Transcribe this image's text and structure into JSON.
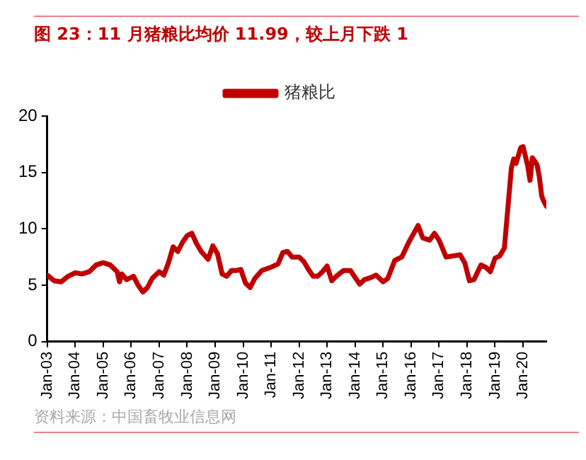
{
  "chart_data": {
    "type": "line",
    "title": "图 23：11 月猪粮比均价 11.99，较上月下跌 1",
    "annotations": [
      "资料来源：中国畜牧业信息网"
    ],
    "x": [
      "2003-01",
      "2003-04",
      "2003-07",
      "2003-10",
      "2004-01",
      "2004-04",
      "2004-07",
      "2004-10",
      "2005-01",
      "2005-04",
      "2005-07",
      "2005-08",
      "2005-09",
      "2005-11",
      "2006-02",
      "2006-04",
      "2006-06",
      "2006-08",
      "2006-10",
      "2007-01",
      "2007-03",
      "2007-05",
      "2007-07",
      "2007-09",
      "2007-11",
      "2008-01",
      "2008-03",
      "2008-05",
      "2008-07",
      "2008-10",
      "2008-12",
      "2009-02",
      "2009-04",
      "2009-06",
      "2009-08",
      "2009-10",
      "2009-12",
      "2010-02",
      "2010-04",
      "2010-06",
      "2010-09",
      "2011-01",
      "2011-04",
      "2011-06",
      "2011-08",
      "2011-10",
      "2012-01",
      "2012-03",
      "2012-05",
      "2012-07",
      "2012-09",
      "2012-11",
      "2013-01",
      "2013-03",
      "2013-05",
      "2013-08",
      "2013-11",
      "2014-01",
      "2014-03",
      "2014-05",
      "2014-08",
      "2014-10",
      "2015-01",
      "2015-03",
      "2015-06",
      "2015-09",
      "2015-12",
      "2016-04",
      "2016-06",
      "2016-09",
      "2016-11",
      "2017-01",
      "2017-04",
      "2017-07",
      "2017-10",
      "2017-12",
      "2018-02",
      "2018-04",
      "2018-07",
      "2018-09",
      "2018-11",
      "2019-01",
      "2019-03",
      "2019-05",
      "2019-08",
      "2019-09",
      "2019-10",
      "2019-12",
      "2020-01",
      "2020-03",
      "2020-04",
      "2020-05",
      "2020-07",
      "2020-08",
      "2020-09",
      "2020-10",
      "2020-11"
    ],
    "series": [
      {
        "name": "猪粮比",
        "color": "#c00000",
        "values": [
          5.9,
          5.4,
          5.3,
          5.8,
          6.1,
          6.0,
          6.2,
          6.8,
          7.0,
          6.8,
          6.2,
          5.3,
          6.0,
          5.5,
          5.8,
          5.0,
          4.4,
          4.8,
          5.6,
          6.2,
          5.9,
          7.0,
          8.4,
          8.0,
          8.8,
          9.4,
          9.6,
          8.7,
          8.0,
          7.3,
          8.5,
          7.8,
          6.0,
          5.8,
          6.3,
          6.3,
          6.4,
          5.2,
          4.8,
          5.6,
          6.3,
          6.6,
          6.9,
          7.9,
          8.0,
          7.5,
          7.5,
          7.1,
          6.4,
          5.8,
          5.8,
          6.2,
          6.7,
          5.4,
          5.8,
          6.3,
          6.3,
          5.7,
          5.1,
          5.5,
          5.7,
          5.9,
          5.3,
          5.6,
          7.2,
          7.5,
          8.8,
          10.3,
          9.2,
          9.0,
          9.6,
          9.0,
          7.5,
          7.6,
          7.7,
          7.0,
          5.4,
          5.5,
          6.8,
          6.6,
          6.2,
          7.4,
          7.6,
          8.3,
          15.4,
          16.2,
          15.8,
          17.2,
          17.3,
          15.6,
          14.3,
          16.3,
          15.7,
          14.6,
          12.9,
          12.4,
          12.0
        ]
      }
    ],
    "xlim": [
      "2003-01",
      "2020-11"
    ],
    "xticks": [
      {
        "value": "2003-01",
        "label": "Jan-03"
      },
      {
        "value": "2004-01",
        "label": "Jan-04"
      },
      {
        "value": "2005-01",
        "label": "Jan-05"
      },
      {
        "value": "2006-01",
        "label": "Jan-06"
      },
      {
        "value": "2007-01",
        "label": "Jan-07"
      },
      {
        "value": "2008-01",
        "label": "Jan-08"
      },
      {
        "value": "2009-01",
        "label": "Jan-09"
      },
      {
        "value": "2010-01",
        "label": "Jan-10"
      },
      {
        "value": "2011-01",
        "label": "Jan-11"
      },
      {
        "value": "2012-01",
        "label": "Jan-12"
      },
      {
        "value": "2013-01",
        "label": "Jan-13"
      },
      {
        "value": "2014-01",
        "label": "Jan-14"
      },
      {
        "value": "2015-01",
        "label": "Jan-15"
      },
      {
        "value": "2016-01",
        "label": "Jan-16"
      },
      {
        "value": "2017-01",
        "label": "Jan-17"
      },
      {
        "value": "2018-01",
        "label": "Jan-18"
      },
      {
        "value": "2019-01",
        "label": "Jan-19"
      },
      {
        "value": "2020-01",
        "label": "Jan-20"
      }
    ],
    "ylim": [
      0,
      20
    ],
    "yticks": [
      0,
      5,
      10,
      15,
      20
    ],
    "grid": false,
    "legend": "top",
    "marker": "none",
    "line_style": "solid"
  }
}
